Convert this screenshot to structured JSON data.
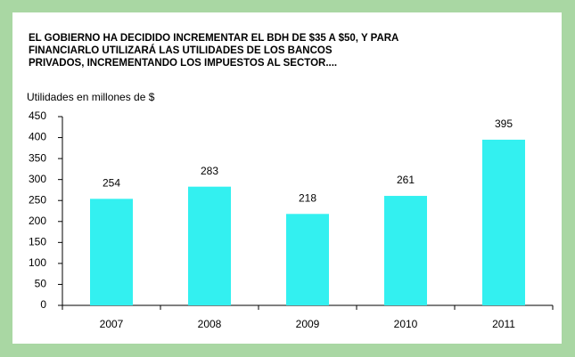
{
  "chart_data": {
    "type": "bar",
    "title": [
      "EL GOBIERNO HA DECIDIDO INCREMENTAR  EL BDH DE $35 A $50, Y PARA",
      "FINANCIARLO UTILIZARÁ LAS UTILIDADES DE LOS BANCOS",
      "PRIVADOS, INCREMENTANDO  LOS IMPUESTOS AL SECTOR...."
    ],
    "y_label": "Utilidades en millones de $",
    "categories": [
      "2007",
      "2008",
      "2009",
      "2010",
      "2011"
    ],
    "values": [
      254,
      283,
      218,
      261,
      395
    ],
    "color": "#33f0f0",
    "ylim": [
      0,
      450
    ],
    "yticks": [
      0,
      50,
      100,
      150,
      200,
      250,
      300,
      350,
      400,
      450
    ],
    "grid": false
  }
}
